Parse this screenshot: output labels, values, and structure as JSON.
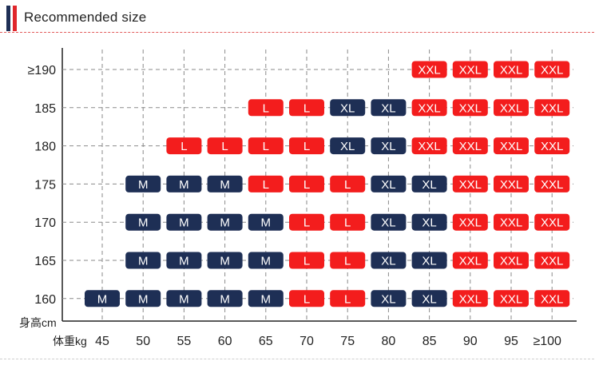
{
  "header": {
    "title": "Recommended size",
    "colors": {
      "navy": "#1e2f55",
      "red": "#e0262b"
    }
  },
  "chart_data": {
    "type": "table",
    "height_unit_label": "身高cm",
    "weight_unit_label": "体重kg",
    "weights": [
      "45",
      "50",
      "55",
      "60",
      "65",
      "70",
      "75",
      "80",
      "85",
      "90",
      "95",
      "≥100"
    ],
    "heights": [
      "≥190",
      "185",
      "180",
      "175",
      "170",
      "165",
      "160"
    ],
    "size_colors": {
      "M": "#1e2f55",
      "L": "#f31d1d",
      "XL": "#1e2f55",
      "XXL": "#f31d1d"
    },
    "rows": [
      {
        "height": "≥190",
        "sizes": [
          "",
          "",
          "",
          "",
          "",
          "",
          "",
          "",
          "XXL",
          "XXL",
          "XXL",
          "XXL"
        ]
      },
      {
        "height": "185",
        "sizes": [
          "",
          "",
          "",
          "",
          "L",
          "L",
          "XL",
          "XL",
          "XXL",
          "XXL",
          "XXL",
          "XXL"
        ]
      },
      {
        "height": "180",
        "sizes": [
          "",
          "",
          "L",
          "L",
          "L",
          "L",
          "XL",
          "XL",
          "XXL",
          "XXL",
          "XXL",
          "XXL"
        ]
      },
      {
        "height": "175",
        "sizes": [
          "",
          "M",
          "M",
          "M",
          "L",
          "L",
          "L",
          "XL",
          "XL",
          "XXL",
          "XXL",
          "XXL"
        ]
      },
      {
        "height": "170",
        "sizes": [
          "",
          "M",
          "M",
          "M",
          "M",
          "L",
          "L",
          "XL",
          "XL",
          "XXL",
          "XXL",
          "XXL"
        ]
      },
      {
        "height": "165",
        "sizes": [
          "",
          "M",
          "M",
          "M",
          "M",
          "L",
          "L",
          "XL",
          "XL",
          "XXL",
          "XXL",
          "XXL"
        ]
      },
      {
        "height": "160",
        "sizes": [
          "M",
          "M",
          "M",
          "M",
          "M",
          "L",
          "L",
          "XL",
          "XL",
          "XXL",
          "XXL",
          "XXL"
        ]
      }
    ]
  }
}
